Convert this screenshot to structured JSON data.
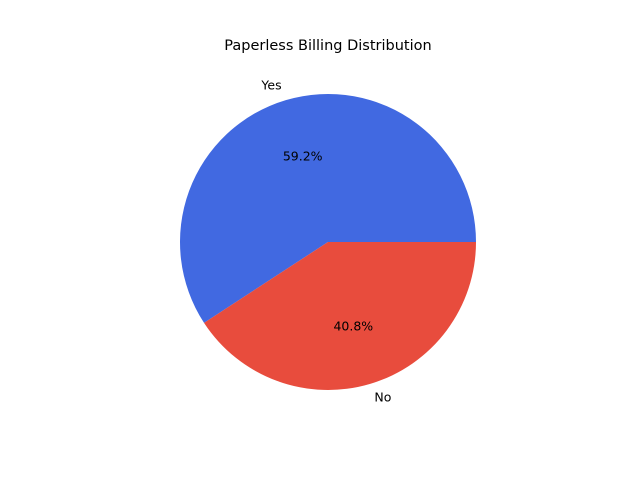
{
  "chart_data": {
    "type": "pie",
    "title": "Paperless Billing Distribution",
    "slices": [
      {
        "label": "Yes",
        "value": 59.2,
        "pct_label": "59.2%",
        "color": "#4169E1"
      },
      {
        "label": "No",
        "value": 40.8,
        "pct_label": "40.8%",
        "color": "#E84C3D"
      }
    ],
    "start_angle_deg": 0,
    "direction": "counterclockwise"
  }
}
